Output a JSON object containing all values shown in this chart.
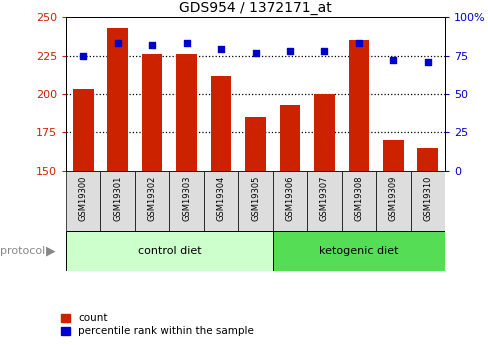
{
  "title": "GDS954 / 1372171_at",
  "samples": [
    "GSM19300",
    "GSM19301",
    "GSM19302",
    "GSM19303",
    "GSM19304",
    "GSM19305",
    "GSM19306",
    "GSM19307",
    "GSM19308",
    "GSM19309",
    "GSM19310"
  ],
  "counts": [
    203,
    243,
    226,
    226,
    212,
    185,
    193,
    200,
    235,
    170,
    165
  ],
  "percentiles": [
    75,
    83,
    82,
    83,
    79,
    77,
    78,
    78,
    83,
    72,
    71
  ],
  "bar_color": "#cc2200",
  "dot_color": "#0000cc",
  "left_ylim": [
    150,
    250
  ],
  "right_ylim": [
    0,
    100
  ],
  "left_yticks": [
    150,
    175,
    200,
    225,
    250
  ],
  "right_yticks": [
    0,
    25,
    50,
    75,
    100
  ],
  "right_yticklabels": [
    "0",
    "25",
    "50",
    "75",
    "100%"
  ],
  "grid_values": [
    175,
    200,
    225
  ],
  "control_diet_indices": [
    0,
    1,
    2,
    3,
    4,
    5
  ],
  "ketogenic_diet_indices": [
    6,
    7,
    8,
    9,
    10
  ],
  "control_label": "control diet",
  "ketogenic_label": "ketogenic diet",
  "protocol_label": "protocol",
  "legend_count": "count",
  "legend_percentile": "percentile rank within the sample",
  "bg_color_plot": "#ffffff",
  "bg_color_label_control": "#ccffcc",
  "bg_color_label_ketogenic": "#55dd55",
  "tick_label_bg": "#dddddd",
  "bar_width": 0.6
}
